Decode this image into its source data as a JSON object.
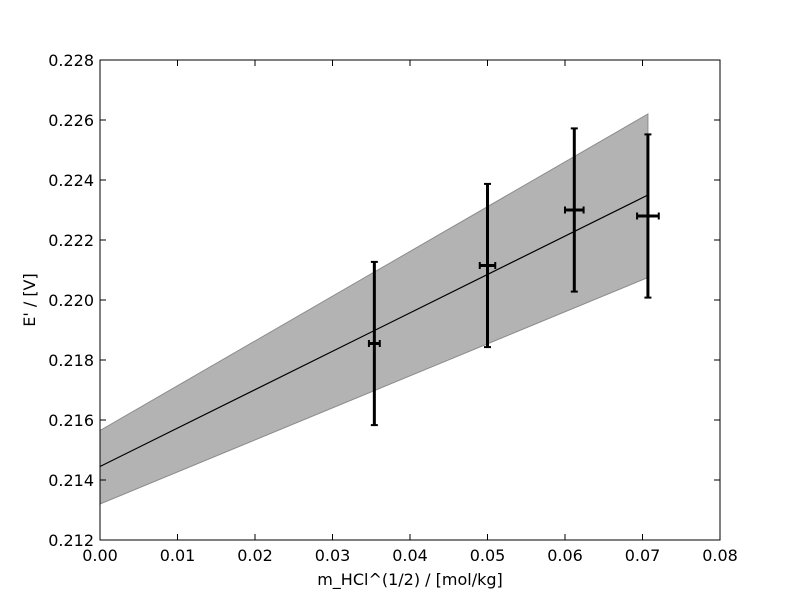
{
  "chart_data": {
    "type": "scatter",
    "title": "",
    "xlabel": "m_HCl^(1/2) / [mol/kg]",
    "ylabel": "E' / [V]",
    "xlim": [
      0.0,
      0.08
    ],
    "ylim": [
      0.212,
      0.228
    ],
    "x_ticks": [
      "0.00",
      "0.01",
      "0.02",
      "0.03",
      "0.04",
      "0.05",
      "0.06",
      "0.07",
      "0.08"
    ],
    "y_ticks": [
      "0.212",
      "0.214",
      "0.216",
      "0.218",
      "0.220",
      "0.222",
      "0.224",
      "0.226",
      "0.228"
    ],
    "grid": false,
    "legend": "none",
    "points": [
      {
        "x": 0.0354,
        "y": 0.21855,
        "x_err": 0.0007,
        "y_err": 0.00272
      },
      {
        "x": 0.05,
        "y": 0.22115,
        "x_err": 0.001,
        "y_err": 0.00272
      },
      {
        "x": 0.0612,
        "y": 0.223,
        "x_err": 0.0012,
        "y_err": 0.00272
      },
      {
        "x": 0.0707,
        "y": 0.2228,
        "x_err": 0.0014,
        "y_err": 0.00272
      }
    ],
    "fit_line": {
      "x": [
        0.0,
        0.0707
      ],
      "y": [
        0.21445,
        0.2235
      ]
    },
    "confidence_band": {
      "x": [
        0.0,
        0.0707
      ],
      "upper": [
        0.21565,
        0.2262
      ],
      "lower": [
        0.2132,
        0.22075
      ]
    },
    "colors": {
      "band": "#b3b3b3",
      "band_edge": "#8c8c8c",
      "line": "#000000",
      "errorbar": "#000000"
    }
  }
}
